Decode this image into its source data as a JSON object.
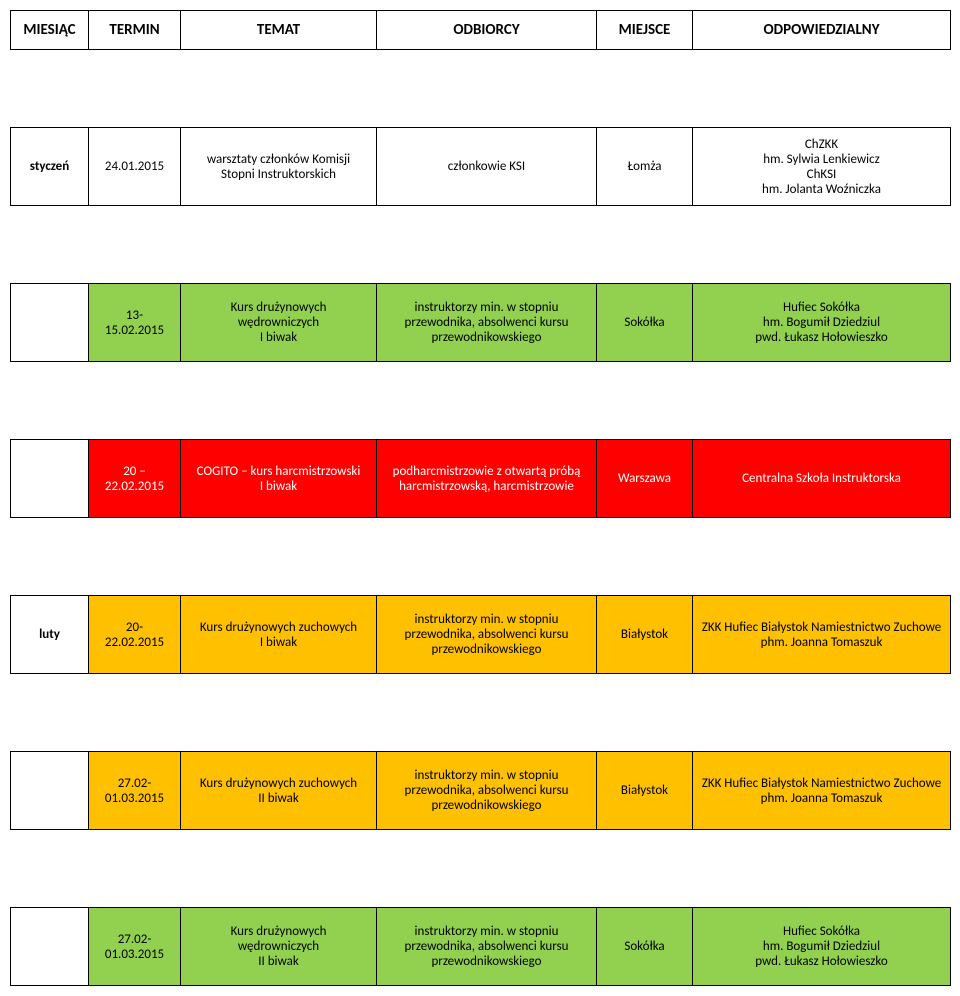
{
  "headers": {
    "miesiac": "MIESIĄC",
    "termin": "TERMIN",
    "temat": "TEMAT",
    "odbiorcy": "ODBIORCY",
    "miejsce": "MIEJSCE",
    "odpowiedzialny": "ODPOWIEDZIALNY"
  },
  "colors": {
    "green": "#92d050",
    "red": "#ff0000",
    "orange": "#ffc000",
    "white": "#ffffff",
    "red_text": "#ffffff"
  },
  "month_labels": {
    "styczen": "styczeń",
    "luty": "luty"
  },
  "rows": [
    {
      "color_key": "white",
      "termin": "24.01.2015",
      "temat": "warsztaty członków Komisji Stopni Instruktorskich",
      "odbiorcy": "członkowie KSI",
      "miejsce": "Łomża",
      "odpowiedzialny": "ChZKK\nhm. Sylwia Lenkiewicz\nChKSI\nhm. Jolanta Woźniczka"
    },
    {
      "color_key": "green",
      "termin": "13-15.02.2015",
      "temat": "Kurs drużynowych wędrowniczych\nI biwak",
      "odbiorcy": "instruktorzy min. w stopniu przewodnika, absolwenci kursu przewodnikowskiego",
      "miejsce": "Sokółka",
      "odpowiedzialny": "Hufiec Sokółka\nhm. Bogumił Dziedziul\npwd. Łukasz Hołowieszko"
    },
    {
      "color_key": "red",
      "termin": "20 – 22.02.2015",
      "temat": "COGITO – kurs harcmistrzowski\nI biwak",
      "odbiorcy": "podharcmistrzowie z otwartą próbą harcmistrzowską, harcmistrzowie",
      "miejsce": "Warszawa",
      "odpowiedzialny": "Centralna Szkoła Instruktorska"
    },
    {
      "color_key": "orange",
      "termin": "20-22.02.2015",
      "temat": "Kurs drużynowych zuchowych\nI biwak",
      "odbiorcy": "instruktorzy min. w stopniu przewodnika, absolwenci kursu przewodnikowskiego",
      "miejsce": "Białystok",
      "odpowiedzialny": "ZKK Hufiec Białystok Namiestnictwo Zuchowe\nphm. Joanna Tomaszuk"
    },
    {
      "color_key": "orange",
      "termin": "27.02-01.03.2015",
      "temat": "Kurs drużynowych zuchowych\nII biwak",
      "odbiorcy": "instruktorzy min. w stopniu przewodnika, absolwenci kursu przewodnikowskiego",
      "miejsce": "Białystok",
      "odpowiedzialny": "ZKK Hufiec Białystok Namiestnictwo Zuchowe\nphm. Joanna Tomaszuk"
    },
    {
      "color_key": "green",
      "termin": "27.02-01.03.2015",
      "temat": "Kurs drużynowych wędrowniczych\nII biwak",
      "odbiorcy": "instruktorzy min. w stopniu przewodnika, absolwenci kursu przewodnikowskiego",
      "miejsce": "Sokółka",
      "odpowiedzialny": "Hufiec Sokółka\nhm. Bogumił Dziedziul\npwd. Łukasz Hołowieszko"
    }
  ]
}
